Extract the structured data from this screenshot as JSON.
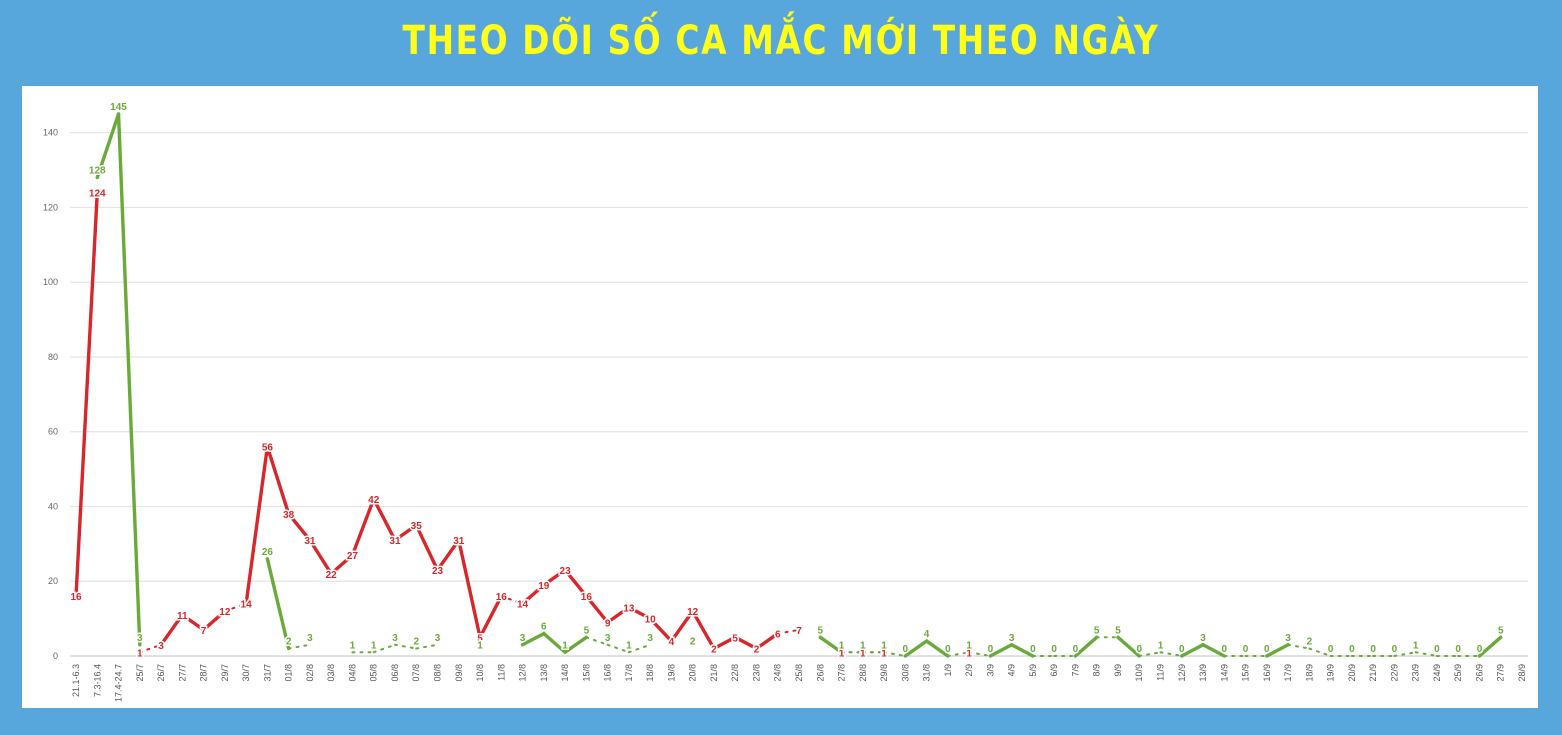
{
  "chart_data": {
    "type": "line",
    "title": "THEO DÕI SỐ CA MẮC MỚI THEO NGÀY",
    "xlabel": "",
    "ylabel": "",
    "ylim": [
      0,
      145
    ],
    "yticks": [
      0,
      20,
      40,
      60,
      80,
      100,
      120,
      140
    ],
    "grid": true,
    "legend": "none",
    "categories": [
      "21.1-6.3",
      "7.3-16.4",
      "17.4-24.7",
      "25/7",
      "26/7",
      "27/7",
      "28/7",
      "29/7",
      "30/7",
      "31/7",
      "01/8",
      "02/8",
      "03/8",
      "04/8",
      "05/8",
      "06/8",
      "07/8",
      "08/8",
      "09/8",
      "10/8",
      "11/8",
      "12/8",
      "13/8",
      "14/8",
      "15/8",
      "16/8",
      "17/8",
      "18/8",
      "19/8",
      "20/8",
      "21/8",
      "22/8",
      "23/8",
      "24/8",
      "25/8",
      "26/8",
      "27/8",
      "28/8",
      "29/8",
      "30/8",
      "31/8",
      "1/9",
      "2/9",
      "3/9",
      "4/9",
      "5/9",
      "6/9",
      "7/9",
      "8/9",
      "9/9",
      "10/9",
      "11/9",
      "12/9",
      "13/9",
      "14/9",
      "15/9",
      "16/9",
      "17/9",
      "18/9",
      "19/9",
      "20/9",
      "21/9",
      "22/9",
      "23/9",
      "24/9",
      "25/9",
      "26/9",
      "27/9",
      "28/9"
    ],
    "series": [
      {
        "color": "#d9262a",
        "values": [
          16,
          124,
          null,
          1,
          3,
          11,
          7,
          12,
          14,
          56,
          38,
          31,
          22,
          27,
          42,
          31,
          35,
          23,
          31,
          5,
          16,
          14,
          19,
          23,
          16,
          9,
          13,
          10,
          4,
          12,
          2,
          5,
          2,
          6,
          7,
          null,
          1,
          1,
          1,
          null,
          null,
          null,
          1,
          null,
          null,
          null,
          null,
          null,
          null,
          null,
          null,
          null,
          null,
          null,
          null,
          null,
          null,
          null,
          null,
          null,
          null,
          null,
          null,
          null,
          null,
          null,
          null,
          null,
          null
        ]
      },
      {
        "color": "#6aaa3a",
        "values": [
          null,
          128,
          145,
          3,
          null,
          null,
          null,
          null,
          null,
          26,
          2,
          3,
          null,
          1,
          1,
          3,
          2,
          3,
          null,
          1,
          null,
          3,
          6,
          1,
          5,
          3,
          1,
          3,
          null,
          2,
          null,
          null,
          null,
          null,
          null,
          5,
          1,
          1,
          1,
          0,
          4,
          0,
          1,
          0,
          3,
          0,
          0,
          0,
          5,
          5,
          0,
          1,
          0,
          3,
          0,
          0,
          0,
          3,
          2,
          0,
          0,
          0,
          0,
          1,
          0,
          0,
          0,
          5,
          null
        ]
      }
    ]
  }
}
